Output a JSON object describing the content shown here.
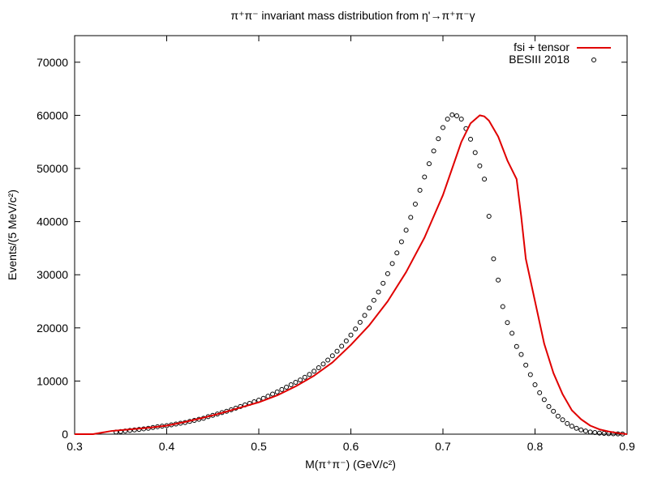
{
  "chart_data": {
    "type": "line",
    "title": "π⁺π⁻ invariant mass distribution from η'→π⁺π⁻γ",
    "xlabel": "M(π⁺π⁻) (GeV/c²)",
    "ylabel": "Events/(5 MeV/c²)",
    "xlim": [
      0.3,
      0.9
    ],
    "ylim": [
      0,
      75000
    ],
    "xticks": [
      0.3,
      0.4,
      0.5,
      0.6,
      0.7,
      0.8,
      0.9
    ],
    "xtick_labels": [
      "0.3",
      "0.4",
      "0.5",
      "0.6",
      "0.7",
      "0.8",
      "0.9"
    ],
    "yticks": [
      0,
      10000,
      20000,
      30000,
      40000,
      50000,
      60000,
      70000
    ],
    "ytick_labels": [
      "0",
      "10000",
      "20000",
      "30000",
      "40000",
      "50000",
      "60000",
      "70000"
    ],
    "grid": false,
    "legend_position": "top-right",
    "series": [
      {
        "name": "fsi + tensor",
        "type": "line",
        "color": "#e00000",
        "x": [
          0.3,
          0.32,
          0.34,
          0.36,
          0.38,
          0.4,
          0.42,
          0.44,
          0.46,
          0.48,
          0.5,
          0.52,
          0.54,
          0.56,
          0.58,
          0.6,
          0.62,
          0.64,
          0.66,
          0.68,
          0.7,
          0.71,
          0.72,
          0.73,
          0.74,
          0.745,
          0.75,
          0.76,
          0.77,
          0.78,
          0.785,
          0.79,
          0.8,
          0.81,
          0.82,
          0.83,
          0.84,
          0.85,
          0.86,
          0.87,
          0.88,
          0.89,
          0.9
        ],
        "y": [
          0,
          0,
          600,
          900,
          1200,
          1600,
          2300,
          3100,
          4000,
          5000,
          6000,
          7300,
          9000,
          11000,
          13500,
          16800,
          20500,
          25000,
          30500,
          37000,
          45000,
          50000,
          55000,
          58500,
          60000,
          59800,
          59000,
          56000,
          51500,
          48000,
          41000,
          33000,
          25000,
          17000,
          11500,
          7500,
          4500,
          2800,
          1600,
          900,
          500,
          200,
          0
        ]
      },
      {
        "name": "BESIII 2018",
        "type": "scatter",
        "color": "#000000",
        "x": [
          0.345,
          0.35,
          0.355,
          0.36,
          0.365,
          0.37,
          0.375,
          0.38,
          0.385,
          0.39,
          0.395,
          0.4,
          0.405,
          0.41,
          0.415,
          0.42,
          0.425,
          0.43,
          0.435,
          0.44,
          0.445,
          0.45,
          0.455,
          0.46,
          0.465,
          0.47,
          0.475,
          0.48,
          0.485,
          0.49,
          0.495,
          0.5,
          0.505,
          0.51,
          0.515,
          0.52,
          0.525,
          0.53,
          0.535,
          0.54,
          0.545,
          0.55,
          0.555,
          0.56,
          0.565,
          0.57,
          0.575,
          0.58,
          0.585,
          0.59,
          0.595,
          0.6,
          0.605,
          0.61,
          0.615,
          0.62,
          0.625,
          0.63,
          0.635,
          0.64,
          0.645,
          0.65,
          0.655,
          0.66,
          0.665,
          0.67,
          0.675,
          0.68,
          0.685,
          0.69,
          0.695,
          0.7,
          0.705,
          0.71,
          0.715,
          0.72,
          0.725,
          0.73,
          0.735,
          0.74,
          0.745,
          0.75,
          0.755,
          0.76,
          0.765,
          0.77,
          0.775,
          0.78,
          0.785,
          0.79,
          0.795,
          0.8,
          0.805,
          0.81,
          0.815,
          0.82,
          0.825,
          0.83,
          0.835,
          0.84,
          0.845,
          0.85,
          0.855,
          0.86,
          0.865,
          0.87,
          0.875,
          0.88,
          0.885,
          0.89,
          0.895
        ],
        "y": [
          400,
          500,
          600,
          700,
          800,
          900,
          1000,
          1100,
          1250,
          1400,
          1500,
          1600,
          1750,
          1900,
          2050,
          2200,
          2400,
          2600,
          2800,
          3000,
          3300,
          3550,
          3800,
          4050,
          4300,
          4600,
          4900,
          5200,
          5500,
          5800,
          6100,
          6400,
          6750,
          7150,
          7550,
          7950,
          8400,
          8850,
          9300,
          9750,
          10200,
          10700,
          11250,
          11850,
          12500,
          13200,
          13950,
          14750,
          15600,
          16550,
          17550,
          18650,
          19800,
          21050,
          22350,
          23750,
          25200,
          26750,
          28400,
          30200,
          32100,
          34100,
          36200,
          38400,
          40800,
          43300,
          45900,
          48400,
          50900,
          53300,
          55600,
          57700,
          59300,
          60100,
          59900,
          59300,
          57500,
          55500,
          53000,
          50500,
          48000,
          41000,
          33000,
          29000,
          24000,
          21000,
          19000,
          16500,
          15000,
          13000,
          11200,
          9300,
          7800,
          6500,
          5200,
          4300,
          3400,
          2700,
          2000,
          1500,
          1100,
          800,
          600,
          400,
          300,
          200,
          150,
          100,
          80,
          60,
          40
        ]
      }
    ]
  }
}
